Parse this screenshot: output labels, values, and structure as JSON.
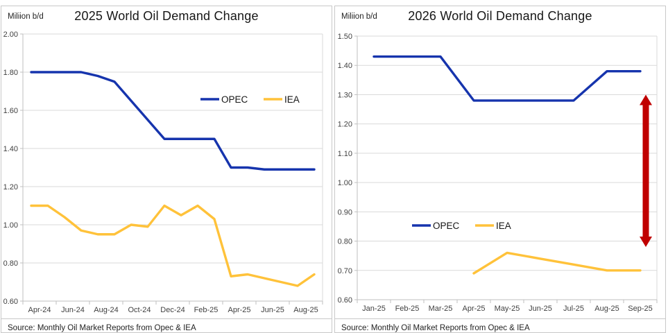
{
  "colors": {
    "opec_line": "#1634AD",
    "iea_line": "#FFC23A",
    "arrow_red": "#C00000",
    "gridline": "#D9D9D9",
    "axis_line": "#BFBFBF",
    "tick_text": "#3F3F3F",
    "legend_text": "#161616"
  },
  "chart_data": [
    {
      "type": "line",
      "title": "2025 World Oil Demand Change",
      "unit_label": "Miliion b/d",
      "source": "Source: Monthly Oil Market Reports from Opec & IEA",
      "categories": [
        "Apr-24",
        "May-24",
        "Jun-24",
        "Jul-24",
        "Aug-24",
        "Sep-24",
        "Oct-24",
        "Nov-24",
        "Dec-24",
        "Jan-25",
        "Feb-25",
        "Mar-25",
        "Apr-25",
        "May-25",
        "Jun-25",
        "Jul-25",
        "Aug-25",
        "Sep-25"
      ],
      "x_tick_labels_shown": [
        "Apr-24",
        "Jun-24",
        "Aug-24",
        "Oct-24",
        "Dec-24",
        "Feb-25",
        "Apr-25",
        "Jun-25",
        "Aug-25"
      ],
      "ylim": [
        0.6,
        2.0
      ],
      "y_step": 0.2,
      "grid": true,
      "legend_position": "inside-upper-right",
      "series": [
        {
          "name": "OPEC",
          "color_key": "opec_line",
          "values": [
            1.8,
            1.8,
            1.8,
            1.8,
            1.78,
            1.75,
            1.65,
            1.55,
            1.45,
            1.45,
            1.45,
            1.45,
            1.3,
            1.3,
            1.29,
            1.29,
            1.29,
            1.29
          ]
        },
        {
          "name": "IEA",
          "color_key": "iea_line",
          "values": [
            1.1,
            1.1,
            1.04,
            0.97,
            0.95,
            0.95,
            1.0,
            0.99,
            1.1,
            1.05,
            1.1,
            1.03,
            0.73,
            0.74,
            0.72,
            0.7,
            0.68,
            0.74
          ]
        }
      ]
    },
    {
      "type": "line",
      "title": "2026 World Oil Demand Change",
      "unit_label": "Miliion b/d",
      "source": "Source: Monthly Oil Market Reports from Opec & IEA",
      "categories": [
        "Jan-25",
        "Feb-25",
        "Mar-25",
        "Apr-25",
        "May-25",
        "Jun-25",
        "Jul-25",
        "Aug-25",
        "Sep-25"
      ],
      "x_tick_labels_shown": [
        "Jan-25",
        "Feb-25",
        "Mar-25",
        "Apr-25",
        "May-25",
        "Jun-25",
        "Jul-25",
        "Aug-25",
        "Sep-25"
      ],
      "ylim": [
        0.6,
        1.5
      ],
      "y_step": 0.1,
      "grid": true,
      "legend_position": "inside-middle-left",
      "series": [
        {
          "name": "OPEC",
          "color_key": "opec_line",
          "values": [
            1.43,
            1.43,
            1.43,
            1.28,
            1.28,
            1.28,
            1.28,
            1.38,
            1.38
          ]
        },
        {
          "name": "IEA",
          "color_key": "iea_line",
          "values": [
            null,
            null,
            null,
            0.69,
            0.76,
            0.74,
            0.72,
            0.7,
            0.7
          ]
        }
      ],
      "annotation_arrow": {
        "near_category": "Sep-25",
        "value_from": 0.78,
        "value_to": 1.3,
        "color_key": "arrow_red"
      }
    }
  ]
}
